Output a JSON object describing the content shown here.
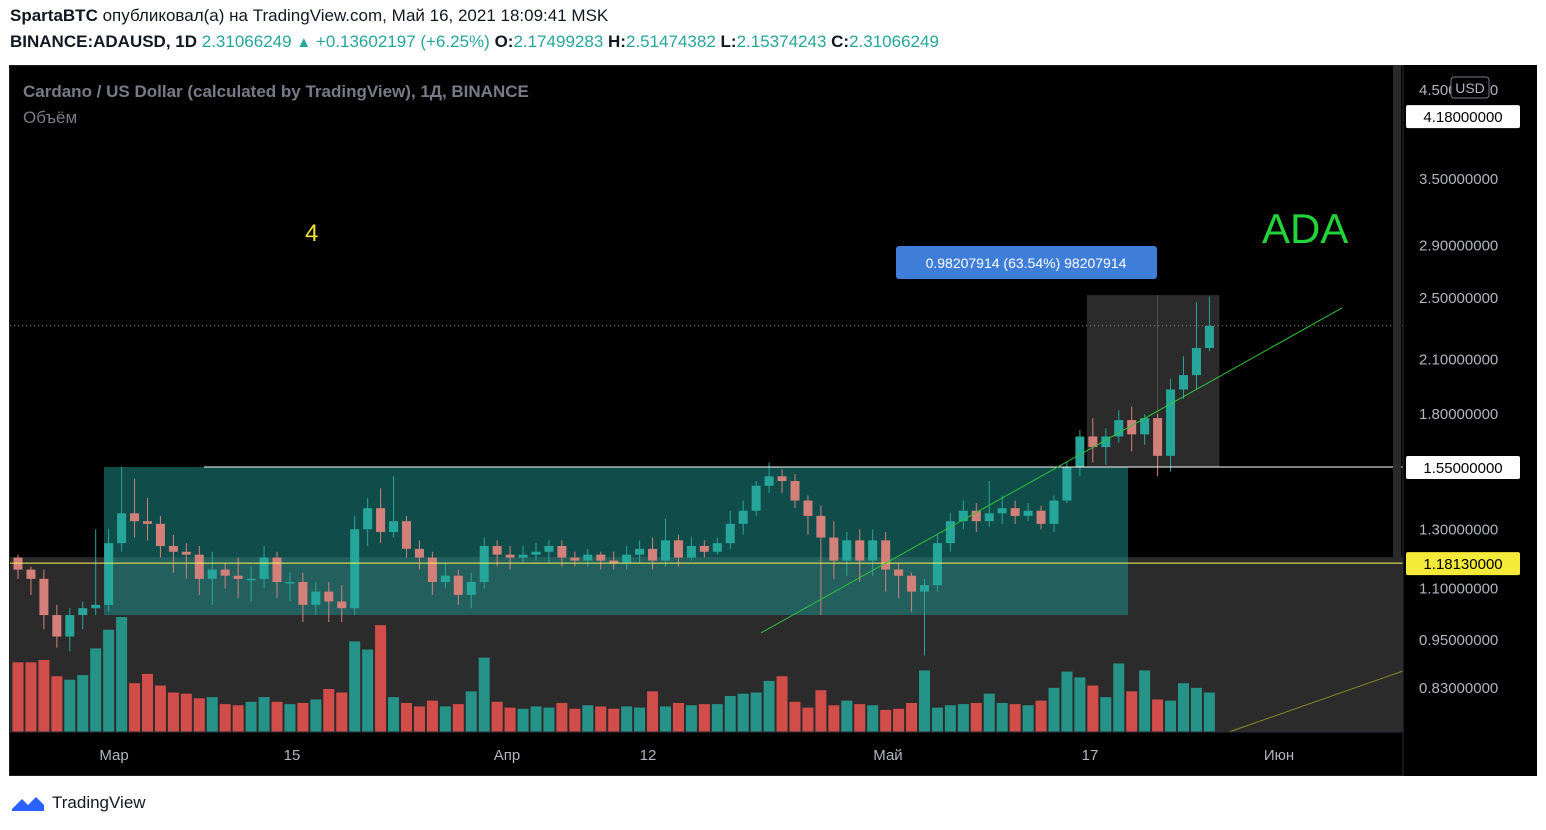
{
  "header": {
    "author": "SpartaBTC",
    "published_text": "опубликовал(а) на TradingView.com, Май 16, 2021 18:09:41 MSK",
    "symbol": "BINANCE:ADAUSD, 1D",
    "last": "2.31066249",
    "change": "+0.13602197 (+6.25%)",
    "o_label": "O:",
    "o": "2.17499283",
    "h_label": "H:",
    "h": "2.51474382",
    "l_label": "L:",
    "l": "2.15374243",
    "c_label": "C:",
    "c": "2.31066249"
  },
  "chart_info": {
    "title": "Cardano / US Dollar (calculated by TradingView), 1Д, BINANCE",
    "volume_label": "Объём",
    "currency_badge": "USD",
    "wave_label": "4",
    "ticker_label": "ADA",
    "measure_label": "0.98207914 (63.54%) 98207914"
  },
  "footer": {
    "brand": "TradingView"
  },
  "colors": {
    "background": "#000000",
    "up": "#26a69a",
    "down": "#ef5350",
    "range_box": "#1e8c86",
    "yellow_line": "#f2f25a",
    "trendline": "#2ec23a",
    "ticker_text": "#22d33a",
    "measure_badge": "#3f7ed8"
  },
  "chart_data": {
    "type": "candlestick",
    "symbol": "BINANCE:ADAUSD",
    "interval": "1D",
    "y_axis": {
      "scale": "log",
      "ticks": [
        "4.50000000",
        "3.50000000",
        "2.90000000",
        "2.50000000",
        "2.10000000",
        "1.80000000",
        "1.55000000",
        "1.30000000",
        "1.10000000",
        "0.95000000",
        "0.83000000"
      ],
      "tick_values": [
        4.5,
        3.5,
        2.9,
        2.5,
        2.1,
        1.8,
        1.55,
        1.3,
        1.1,
        0.95,
        0.83
      ]
    },
    "x_axis": {
      "ticks": [
        "Мар",
        "15",
        "Апр",
        "12",
        "Май",
        "17",
        "Июн"
      ]
    },
    "price_labels": [
      {
        "value": "4.18000000",
        "style": "white"
      },
      {
        "value": "1.55000000",
        "style": "white"
      },
      {
        "value": "1.18130000",
        "style": "yellow"
      }
    ],
    "current_price": 2.31066249,
    "range_box": {
      "high": 1.55,
      "low": 1.02
    },
    "yellow_level": 1.1813,
    "horizontal_line": 1.55,
    "trendline": {
      "start_price": 0.97,
      "end_price": 2.43
    },
    "candles": [
      [
        1.2,
        1.16,
        1.21,
        1.13
      ],
      [
        1.16,
        1.13,
        1.17,
        1.08
      ],
      [
        1.13,
        1.02,
        1.16,
        0.98
      ],
      [
        1.02,
        0.96,
        1.05,
        0.93
      ],
      [
        0.96,
        1.02,
        1.04,
        0.92
      ],
      [
        1.02,
        1.04,
        1.06,
        0.98
      ],
      [
        1.04,
        1.05,
        1.3,
        1.02
      ],
      [
        1.05,
        1.25,
        1.3,
        1.03
      ],
      [
        1.25,
        1.36,
        1.55,
        1.22
      ],
      [
        1.36,
        1.33,
        1.5,
        1.27
      ],
      [
        1.33,
        1.32,
        1.42,
        1.26
      ],
      [
        1.32,
        1.24,
        1.35,
        1.2
      ],
      [
        1.24,
        1.22,
        1.28,
        1.15
      ],
      [
        1.22,
        1.21,
        1.25,
        1.13
      ],
      [
        1.21,
        1.13,
        1.24,
        1.08
      ],
      [
        1.13,
        1.16,
        1.22,
        1.05
      ],
      [
        1.16,
        1.14,
        1.18,
        1.1
      ],
      [
        1.14,
        1.13,
        1.2,
        1.07
      ],
      [
        1.13,
        1.13,
        1.17,
        1.06
      ],
      [
        1.13,
        1.2,
        1.24,
        1.1
      ],
      [
        1.2,
        1.12,
        1.22,
        1.07
      ],
      [
        1.12,
        1.12,
        1.15,
        1.06
      ],
      [
        1.12,
        1.05,
        1.15,
        1.0
      ],
      [
        1.05,
        1.09,
        1.12,
        1.02
      ],
      [
        1.09,
        1.06,
        1.12,
        1.0
      ],
      [
        1.06,
        1.04,
        1.11,
        1.0
      ],
      [
        1.04,
        1.3,
        1.35,
        1.02
      ],
      [
        1.3,
        1.38,
        1.42,
        1.24
      ],
      [
        1.38,
        1.29,
        1.46,
        1.25
      ],
      [
        1.29,
        1.33,
        1.51,
        1.27
      ],
      [
        1.33,
        1.23,
        1.35,
        1.2
      ],
      [
        1.23,
        1.2,
        1.26,
        1.16
      ],
      [
        1.2,
        1.12,
        1.22,
        1.08
      ],
      [
        1.12,
        1.14,
        1.18,
        1.1
      ],
      [
        1.14,
        1.08,
        1.16,
        1.05
      ],
      [
        1.08,
        1.12,
        1.15,
        1.04
      ],
      [
        1.12,
        1.24,
        1.27,
        1.1
      ],
      [
        1.24,
        1.21,
        1.26,
        1.17
      ],
      [
        1.21,
        1.2,
        1.24,
        1.16
      ],
      [
        1.2,
        1.21,
        1.24,
        1.18
      ],
      [
        1.21,
        1.22,
        1.25,
        1.19
      ],
      [
        1.22,
        1.24,
        1.26,
        1.18
      ],
      [
        1.24,
        1.2,
        1.26,
        1.17
      ],
      [
        1.2,
        1.19,
        1.22,
        1.17
      ],
      [
        1.19,
        1.21,
        1.23,
        1.17
      ],
      [
        1.21,
        1.19,
        1.22,
        1.16
      ],
      [
        1.19,
        1.18,
        1.22,
        1.16
      ],
      [
        1.18,
        1.21,
        1.24,
        1.16
      ],
      [
        1.21,
        1.23,
        1.26,
        1.18
      ],
      [
        1.23,
        1.19,
        1.27,
        1.16
      ],
      [
        1.19,
        1.26,
        1.34,
        1.17
      ],
      [
        1.26,
        1.2,
        1.28,
        1.17
      ],
      [
        1.2,
        1.24,
        1.27,
        1.19
      ],
      [
        1.24,
        1.22,
        1.26,
        1.2
      ],
      [
        1.22,
        1.25,
        1.27,
        1.21
      ],
      [
        1.25,
        1.32,
        1.37,
        1.23
      ],
      [
        1.32,
        1.37,
        1.41,
        1.28
      ],
      [
        1.37,
        1.47,
        1.49,
        1.35
      ],
      [
        1.47,
        1.51,
        1.57,
        1.44
      ],
      [
        1.51,
        1.49,
        1.54,
        1.44
      ],
      [
        1.49,
        1.41,
        1.52,
        1.38
      ],
      [
        1.41,
        1.35,
        1.43,
        1.28
      ],
      [
        1.35,
        1.27,
        1.39,
        1.02
      ],
      [
        1.27,
        1.19,
        1.33,
        1.13
      ],
      [
        1.19,
        1.26,
        1.29,
        1.14
      ],
      [
        1.26,
        1.19,
        1.3,
        1.12
      ],
      [
        1.19,
        1.26,
        1.3,
        1.14
      ],
      [
        1.26,
        1.16,
        1.29,
        1.09
      ],
      [
        1.16,
        1.14,
        1.18,
        1.07
      ],
      [
        1.14,
        1.09,
        1.15,
        1.03
      ],
      [
        1.09,
        1.11,
        1.13,
        0.91
      ],
      [
        1.11,
        1.25,
        1.28,
        1.09
      ],
      [
        1.25,
        1.33,
        1.36,
        1.22
      ],
      [
        1.33,
        1.37,
        1.41,
        1.3
      ],
      [
        1.37,
        1.33,
        1.4,
        1.29
      ],
      [
        1.33,
        1.36,
        1.49,
        1.31
      ],
      [
        1.36,
        1.38,
        1.43,
        1.32
      ],
      [
        1.38,
        1.35,
        1.41,
        1.32
      ],
      [
        1.35,
        1.37,
        1.4,
        1.33
      ],
      [
        1.37,
        1.32,
        1.39,
        1.3
      ],
      [
        1.32,
        1.41,
        1.43,
        1.29
      ],
      [
        1.41,
        1.55,
        1.57,
        1.4
      ],
      [
        1.55,
        1.69,
        1.72,
        1.51
      ],
      [
        1.69,
        1.64,
        1.78,
        1.57
      ],
      [
        1.64,
        1.69,
        1.73,
        1.56
      ],
      [
        1.69,
        1.77,
        1.82,
        1.66
      ],
      [
        1.77,
        1.7,
        1.84,
        1.62
      ],
      [
        1.7,
        1.78,
        1.8,
        1.65
      ],
      [
        1.78,
        1.6,
        1.8,
        1.51
      ],
      [
        1.6,
        1.93,
        1.99,
        1.53
      ],
      [
        1.93,
        2.01,
        2.12,
        1.88
      ],
      [
        2.01,
        2.17,
        2.47,
        1.93
      ],
      [
        2.17,
        2.31,
        2.51,
        2.15
      ]
    ],
    "volumes": [
      0.6,
      0.6,
      0.62,
      0.48,
      0.45,
      0.49,
      0.72,
      0.88,
      0.99,
      0.42,
      0.5,
      0.4,
      0.34,
      0.33,
      0.29,
      0.3,
      0.24,
      0.23,
      0.26,
      0.3,
      0.26,
      0.24,
      0.25,
      0.28,
      0.37,
      0.34,
      0.78,
      0.71,
      0.92,
      0.3,
      0.25,
      0.22,
      0.27,
      0.22,
      0.24,
      0.35,
      0.64,
      0.26,
      0.21,
      0.2,
      0.22,
      0.21,
      0.25,
      0.2,
      0.23,
      0.22,
      0.2,
      0.22,
      0.21,
      0.35,
      0.22,
      0.25,
      0.23,
      0.24,
      0.24,
      0.31,
      0.33,
      0.34,
      0.44,
      0.48,
      0.26,
      0.21,
      0.36,
      0.23,
      0.27,
      0.24,
      0.23,
      0.19,
      0.2,
      0.25,
      0.53,
      0.21,
      0.23,
      0.24,
      0.25,
      0.33,
      0.25,
      0.24,
      0.23,
      0.27,
      0.38,
      0.52,
      0.47,
      0.4,
      0.3,
      0.59,
      0.35,
      0.53,
      0.28,
      0.27,
      0.42,
      0.38,
      0.34
    ]
  }
}
